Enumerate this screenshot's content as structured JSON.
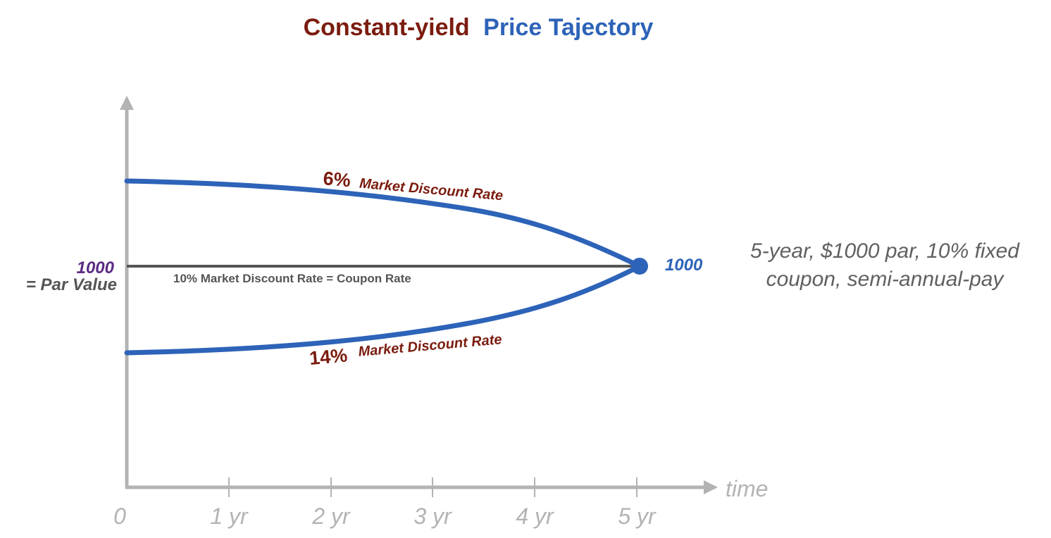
{
  "title": {
    "part1": "Constant-yield",
    "part2": "Price Tajectory"
  },
  "colors": {
    "title1": "#7b1c0f",
    "title2": "#2d63b8",
    "axis": "#b3b3b3",
    "curve": "#2d63b8",
    "par_line": "#555555",
    "curve_label": "#7b1c0f"
  },
  "x_axis": {
    "title": "time",
    "ticks": [
      "0",
      "1 yr",
      "2 yr",
      "3 yr",
      "4 yr",
      "5 yr"
    ]
  },
  "par": {
    "value": "1000",
    "label": "= Par Value"
  },
  "endpoint_label": "1000",
  "curves": {
    "premium": {
      "pct": "6%",
      "label": "Market Discount Rate"
    },
    "par_line": {
      "label": "10% Market Discount Rate = Coupon Rate"
    },
    "discount": {
      "pct": "14%",
      "label": "Market Discount Rate"
    }
  },
  "note": {
    "line1": "5-year, $1000 par, 10% fixed",
    "line2": "coupon, semi-annual-pay"
  }
}
